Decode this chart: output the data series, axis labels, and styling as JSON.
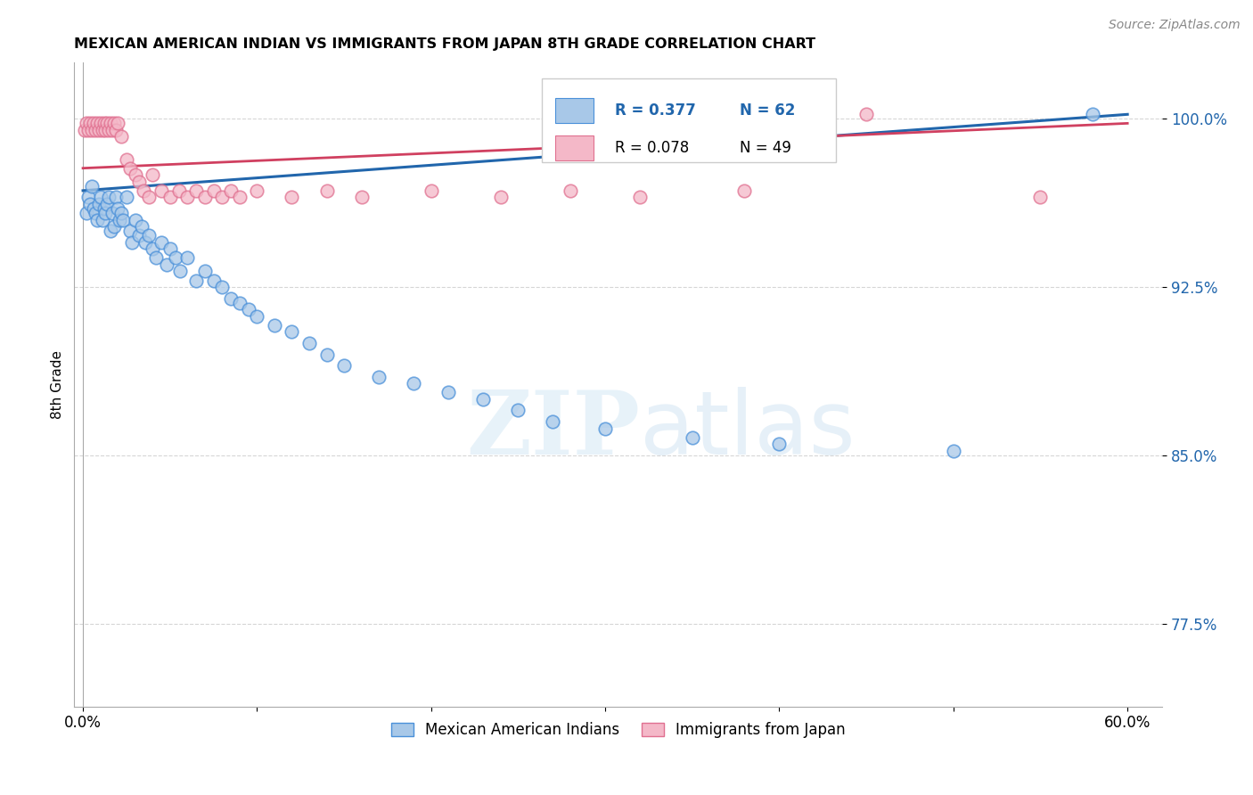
{
  "title": "MEXICAN AMERICAN INDIAN VS IMMIGRANTS FROM JAPAN 8TH GRADE CORRELATION CHART",
  "source": "Source: ZipAtlas.com",
  "ylabel": "8th Grade",
  "y_ticks": [
    0.775,
    0.85,
    0.925,
    1.0
  ],
  "y_tick_labels": [
    "77.5%",
    "85.0%",
    "92.5%",
    "100.0%"
  ],
  "legend": {
    "blue_r": "R = 0.377",
    "blue_n": "N = 62",
    "pink_r": "R = 0.078",
    "pink_n": "N = 49"
  },
  "watermark_zip": "ZIP",
  "watermark_atlas": "atlas",
  "blue_color": "#a8c8e8",
  "blue_edge_color": "#4a90d9",
  "blue_line_color": "#2166ac",
  "pink_color": "#f4b8c8",
  "pink_edge_color": "#e07090",
  "pink_line_color": "#d04060",
  "blue_scatter_x": [
    0.002,
    0.003,
    0.004,
    0.005,
    0.006,
    0.007,
    0.008,
    0.009,
    0.01,
    0.011,
    0.012,
    0.013,
    0.014,
    0.015,
    0.016,
    0.017,
    0.018,
    0.019,
    0.02,
    0.021,
    0.022,
    0.023,
    0.025,
    0.027,
    0.028,
    0.03,
    0.032,
    0.034,
    0.036,
    0.038,
    0.04,
    0.042,
    0.045,
    0.048,
    0.05,
    0.053,
    0.056,
    0.06,
    0.065,
    0.07,
    0.075,
    0.08,
    0.085,
    0.09,
    0.095,
    0.1,
    0.11,
    0.12,
    0.13,
    0.14,
    0.15,
    0.17,
    0.19,
    0.21,
    0.23,
    0.25,
    0.27,
    0.3,
    0.35,
    0.4,
    0.5,
    0.58
  ],
  "blue_scatter_y": [
    0.958,
    0.965,
    0.962,
    0.97,
    0.96,
    0.958,
    0.955,
    0.962,
    0.965,
    0.955,
    0.96,
    0.958,
    0.962,
    0.965,
    0.95,
    0.958,
    0.952,
    0.965,
    0.96,
    0.955,
    0.958,
    0.955,
    0.965,
    0.95,
    0.945,
    0.955,
    0.948,
    0.952,
    0.945,
    0.948,
    0.942,
    0.938,
    0.945,
    0.935,
    0.942,
    0.938,
    0.932,
    0.938,
    0.928,
    0.932,
    0.928,
    0.925,
    0.92,
    0.918,
    0.915,
    0.912,
    0.908,
    0.905,
    0.9,
    0.895,
    0.89,
    0.885,
    0.882,
    0.878,
    0.875,
    0.87,
    0.865,
    0.862,
    0.858,
    0.855,
    0.852,
    1.002
  ],
  "pink_scatter_x": [
    0.001,
    0.002,
    0.003,
    0.004,
    0.005,
    0.006,
    0.007,
    0.008,
    0.009,
    0.01,
    0.011,
    0.012,
    0.013,
    0.014,
    0.015,
    0.016,
    0.017,
    0.018,
    0.019,
    0.02,
    0.022,
    0.025,
    0.027,
    0.03,
    0.032,
    0.035,
    0.038,
    0.04,
    0.045,
    0.05,
    0.055,
    0.06,
    0.065,
    0.07,
    0.075,
    0.08,
    0.085,
    0.09,
    0.1,
    0.12,
    0.14,
    0.16,
    0.2,
    0.24,
    0.28,
    0.32,
    0.38,
    0.45,
    0.55
  ],
  "pink_scatter_y": [
    0.995,
    0.998,
    0.995,
    0.998,
    0.995,
    0.998,
    0.995,
    0.998,
    0.995,
    0.998,
    0.995,
    0.998,
    0.995,
    0.998,
    0.995,
    0.998,
    0.995,
    0.998,
    0.995,
    0.998,
    0.992,
    0.982,
    0.978,
    0.975,
    0.972,
    0.968,
    0.965,
    0.975,
    0.968,
    0.965,
    0.968,
    0.965,
    0.968,
    0.965,
    0.968,
    0.965,
    0.968,
    0.965,
    0.968,
    0.965,
    0.968,
    0.965,
    0.968,
    0.965,
    0.968,
    0.965,
    0.968,
    1.002,
    0.965
  ],
  "blue_line_x": [
    0.0,
    0.6
  ],
  "blue_line_y": [
    0.968,
    1.002
  ],
  "pink_line_x": [
    0.0,
    0.6
  ],
  "pink_line_y": [
    0.978,
    0.998
  ],
  "ylim": [
    0.738,
    1.025
  ],
  "xlim": [
    -0.005,
    0.62
  ]
}
